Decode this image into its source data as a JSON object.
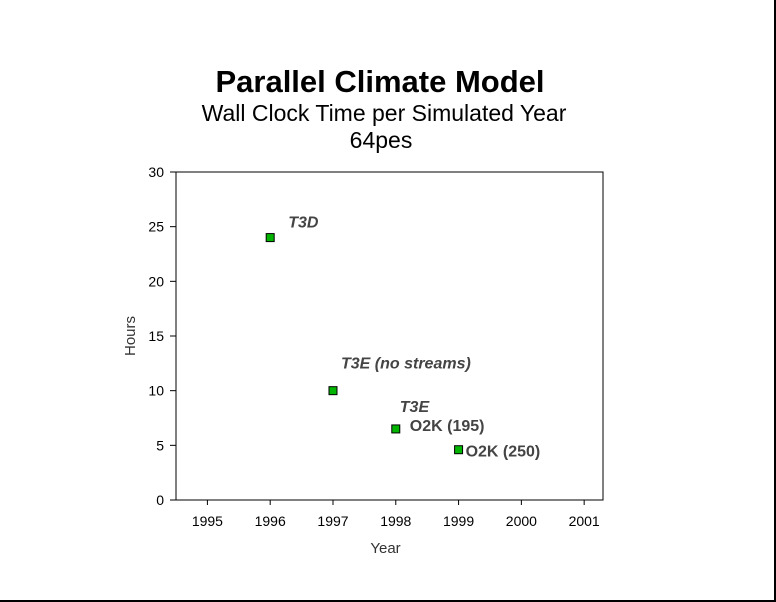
{
  "chart_data": {
    "type": "scatter",
    "title": "Parallel Climate Model",
    "subtitle": "Wall Clock Time per Simulated Year",
    "subtitle2": "64pes",
    "xlabel": "Year",
    "ylabel": "Hours",
    "xlim": [
      1994.5,
      2001.3
    ],
    "ylim": [
      0,
      30
    ],
    "xticks": [
      1995,
      1996,
      1997,
      1998,
      1999,
      2000,
      2001
    ],
    "yticks": [
      0,
      5,
      10,
      15,
      20,
      25,
      30
    ],
    "grid": false,
    "marker_color": "#00b400",
    "points": [
      {
        "x": 1996,
        "y": 24,
        "label": "T3D",
        "italic": true
      },
      {
        "x": 1997,
        "y": 10,
        "label": "T3E (no streams)",
        "italic": true
      },
      {
        "x": 1998,
        "y": 6.5,
        "label": "T3E",
        "italic": true
      },
      {
        "x": 1998,
        "y": 6.5,
        "label": "O2K (195)",
        "italic": false
      },
      {
        "x": 1999,
        "y": 4.6,
        "label": "O2K (250)",
        "italic": false
      }
    ]
  }
}
